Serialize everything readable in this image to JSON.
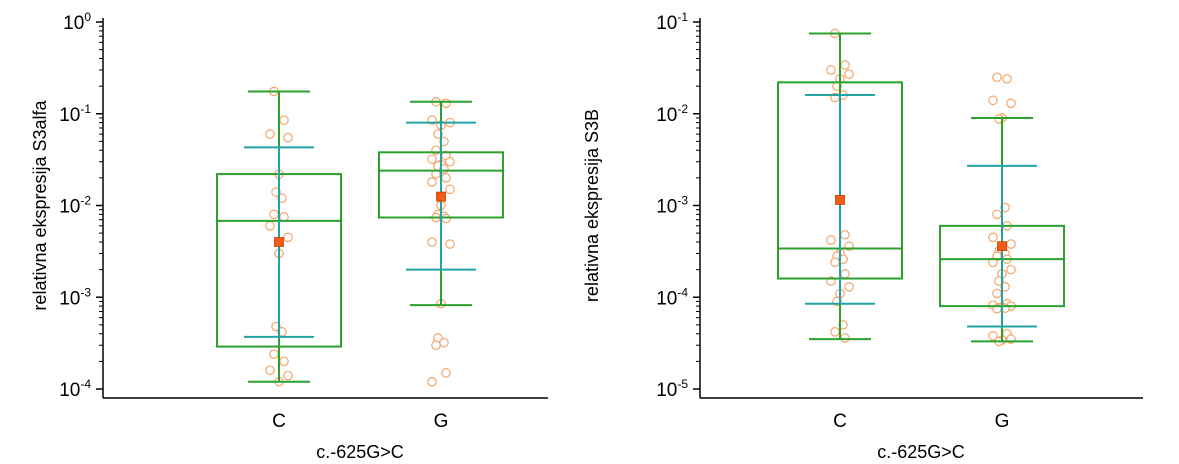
{
  "colors": {
    "box": "#2ca02c",
    "whisker": "#2ca02c",
    "sd": "#22a3a3",
    "mean": "#f25a1a",
    "mean_edge": "#c04000",
    "point": "#f4a46a",
    "axis": "#000000"
  },
  "chart_data": [
    {
      "type": "box",
      "xlabel": "c.-625G>C",
      "ylabel": "relativna ekspresija S3alfa",
      "yscale": "log",
      "ylim": [
        0.0001,
        1
      ],
      "yticks": [
        {
          "base": "10",
          "exp": "-4",
          "value": 0.0001
        },
        {
          "base": "10",
          "exp": "-3",
          "value": 0.001
        },
        {
          "base": "10",
          "exp": "-2",
          "value": 0.01
        },
        {
          "base": "10",
          "exp": "-1",
          "value": 0.1
        },
        {
          "base": "10",
          "exp": "0",
          "value": 1
        }
      ],
      "categories": [
        "C",
        "G"
      ],
      "groups": [
        {
          "category": "C",
          "whisker_low": 0.00012,
          "q1": 0.00029,
          "median": 0.0068,
          "q3": 0.022,
          "whisker_high": 0.175,
          "sd_low": 0.00037,
          "sd_high": 0.043,
          "mean": 0.004,
          "points": [
            0.175,
            0.085,
            0.06,
            0.055,
            0.022,
            0.014,
            0.012,
            0.008,
            0.0075,
            0.006,
            0.0045,
            0.003,
            0.00048,
            0.00042,
            0.00024,
            0.0002,
            0.00016,
            0.00014,
            0.00012
          ]
        },
        {
          "category": "G",
          "whisker_low": 0.00082,
          "q1": 0.0074,
          "median": 0.024,
          "q3": 0.038,
          "whisker_high": 0.135,
          "sd_low": 0.002,
          "sd_high": 0.08,
          "mean": 0.0125,
          "points": [
            0.135,
            0.13,
            0.085,
            0.08,
            0.075,
            0.06,
            0.05,
            0.04,
            0.035,
            0.032,
            0.03,
            0.028,
            0.027,
            0.025,
            0.022,
            0.02,
            0.018,
            0.015,
            0.01,
            0.008,
            0.0076,
            0.0074,
            0.0072,
            0.004,
            0.0038,
            0.00085,
            0.00036,
            0.00032,
            0.0003,
            0.00015,
            0.00012
          ]
        }
      ]
    },
    {
      "type": "box",
      "xlabel": "c.-625G>C",
      "ylabel": "relativna ekspresija S3B",
      "yscale": "log",
      "ylim": [
        1e-05,
        0.1
      ],
      "yticks": [
        {
          "base": "10",
          "exp": "-5",
          "value": 1e-05
        },
        {
          "base": "10",
          "exp": "-4",
          "value": 0.0001
        },
        {
          "base": "10",
          "exp": "-3",
          "value": 0.001
        },
        {
          "base": "10",
          "exp": "-2",
          "value": 0.01
        },
        {
          "base": "10",
          "exp": "-1",
          "value": 0.1
        }
      ],
      "categories": [
        "C",
        "G"
      ],
      "groups": [
        {
          "category": "C",
          "whisker_low": 3.5e-05,
          "q1": 0.00016,
          "median": 0.00034,
          "q3": 0.022,
          "whisker_high": 0.075,
          "sd_low": 8.5e-05,
          "sd_high": 0.016,
          "mean": 0.00115,
          "points": [
            0.075,
            0.034,
            0.03,
            0.027,
            0.024,
            0.02,
            0.016,
            0.015,
            0.00048,
            0.00042,
            0.00036,
            0.0003,
            0.00028,
            0.00026,
            0.00024,
            0.00018,
            0.00015,
            0.00013,
            0.00011,
            9e-05,
            5e-05,
            4.2e-05,
            3.6e-05
          ]
        },
        {
          "category": "G",
          "whisker_low": 3.3e-05,
          "q1": 8e-05,
          "median": 0.00026,
          "q3": 0.0006,
          "whisker_high": 0.009,
          "sd_low": 4.8e-05,
          "sd_high": 0.0027,
          "mean": 0.00036,
          "points": [
            0.025,
            0.024,
            0.014,
            0.013,
            0.009,
            0.0088,
            0.00095,
            0.0008,
            0.0006,
            0.00045,
            0.00038,
            0.00035,
            0.00032,
            0.0003,
            0.00028,
            0.00026,
            0.00024,
            0.0002,
            0.00018,
            0.00015,
            0.00013,
            0.00011,
            8.5e-05,
            8.2e-05,
            8e-05,
            7.8e-05,
            7.7e-05,
            7.6e-05,
            7.5e-05,
            4e-05,
            3.8e-05,
            3.5e-05,
            3.4e-05,
            3.3e-05
          ]
        }
      ]
    }
  ]
}
